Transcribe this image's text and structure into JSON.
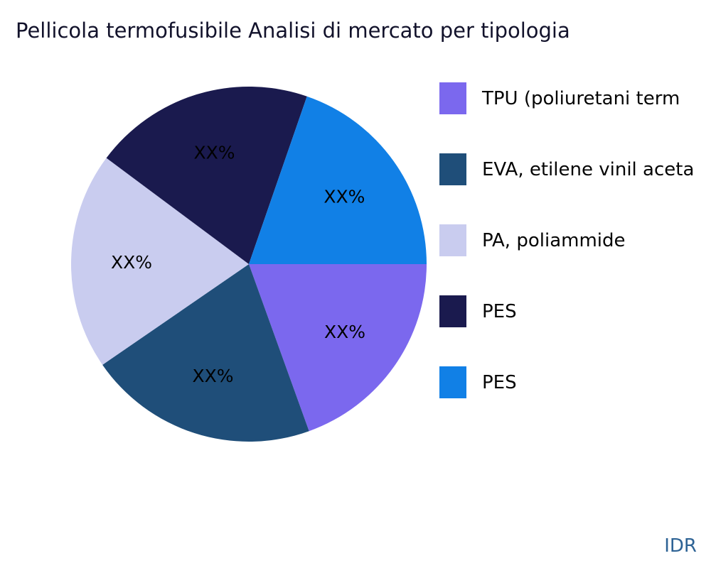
{
  "header": {
    "title": "Pellicola termofusibile Analisi di mercato per tipologia"
  },
  "watermark": "IDR",
  "chart_data": {
    "type": "pie",
    "title": "Pellicola termofusibile Analisi di mercato per tipologia",
    "legend_position": "right",
    "start_angle_deg": 0,
    "direction": "clockwise",
    "slices": [
      {
        "label": "TPU (poliuretani term",
        "value": 19.5,
        "color": "#7B68EE",
        "data_label": "XX%"
      },
      {
        "label": "EVA, etilene vinil aceta",
        "value": 20.9,
        "color": "#1F4E79",
        "data_label": "XX%"
      },
      {
        "label": "PA, poliammide",
        "value": 19.8,
        "color": "#C9CCEF",
        "data_label": "XX%"
      },
      {
        "label": "PES",
        "value": 20.1,
        "color": "#1A1A4E",
        "data_label": "XX%"
      },
      {
        "label": "PES",
        "value": 19.7,
        "color": "#1180E6",
        "data_label": "XX%"
      }
    ]
  }
}
